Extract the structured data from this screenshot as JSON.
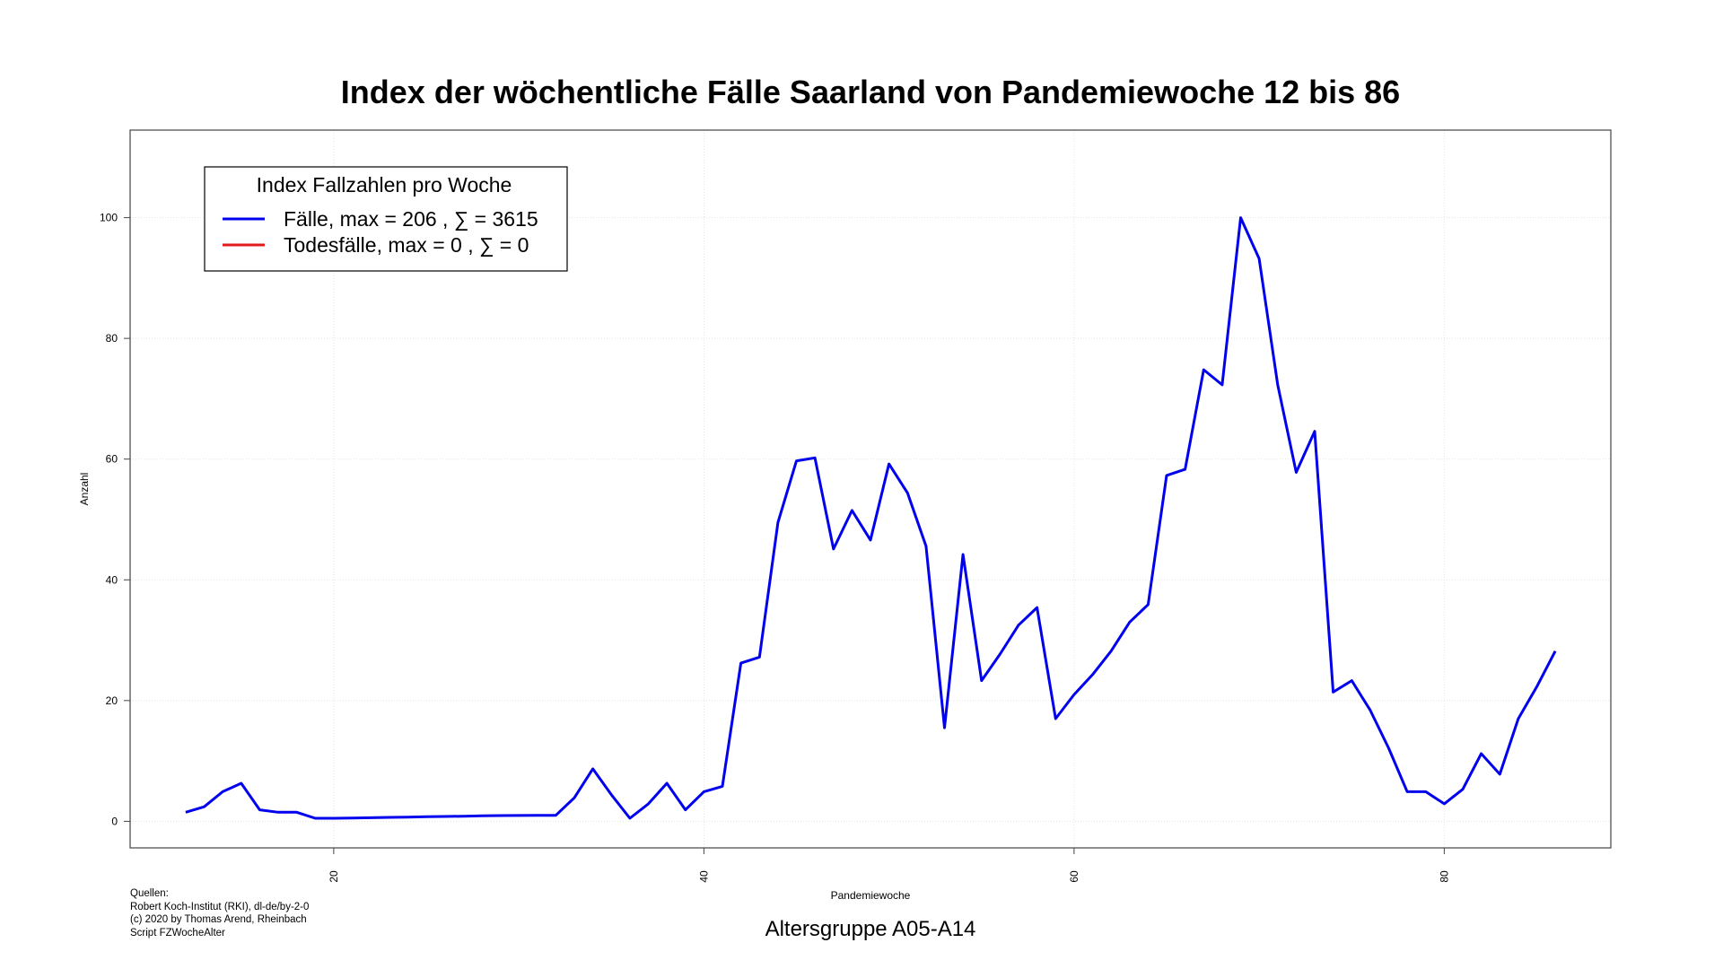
{
  "chart_data": {
    "type": "line",
    "title": "Index der wöchentliche Fälle Saarland von Pandemiewoche 12 bis 86",
    "subtitle": "Altersgruppe A05-A14",
    "xlabel": "Pandemiewoche",
    "ylabel": "Anzahl",
    "xlim": [
      9,
      89
    ],
    "ylim": [
      -4.4,
      114.5
    ],
    "xticks": [
      20,
      40,
      60,
      80
    ],
    "yticks": [
      0,
      20,
      40,
      60,
      80,
      100
    ],
    "grid": true,
    "legend": {
      "title": "Index Fallzahlen pro Woche",
      "placement": "top-left",
      "entries": [
        "Fälle, max = 206 ,  ∑  = 3615",
        "Todesfälle, max = 0 ,  ∑  = 0"
      ]
    },
    "series": [
      {
        "name": "Fälle",
        "color": "#0000ee",
        "x": [
          12,
          13,
          14,
          15,
          16,
          17,
          18,
          19,
          20,
          21,
          22,
          23,
          24,
          25,
          26,
          27,
          28,
          29,
          30,
          31,
          32,
          33,
          34,
          35,
          36,
          37,
          38,
          39,
          40,
          41,
          42,
          43,
          44,
          45,
          46,
          47,
          48,
          49,
          50,
          51,
          52,
          53,
          54,
          55,
          56,
          57,
          58,
          59,
          60,
          61,
          62,
          63,
          64,
          65,
          66,
          67,
          68,
          69,
          70,
          71,
          72,
          73,
          74,
          75,
          76,
          77,
          78,
          79,
          80,
          81,
          82,
          83,
          84,
          85,
          86
        ],
        "y": [
          1.5,
          2.4,
          4.9,
          6.3,
          1.9,
          1.5,
          1.5,
          0.5,
          0.5,
          0.55,
          0.6,
          0.65,
          0.7,
          0.75,
          0.8,
          0.85,
          0.9,
          0.95,
          0.97,
          1.0,
          1.0,
          3.9,
          8.7,
          4.4,
          0.5,
          2.9,
          6.3,
          1.9,
          4.9,
          5.8,
          26.2,
          27.2,
          49.5,
          59.7,
          60.2,
          45.1,
          51.5,
          46.6,
          59.2,
          54.4,
          45.6,
          15.5,
          44.2,
          23.3,
          27.7,
          32.5,
          35.4,
          17.0,
          21.0,
          24.3,
          28.2,
          33.0,
          35.9,
          57.3,
          58.3,
          74.8,
          72.3,
          100.0,
          93.2,
          72.3,
          57.8,
          64.6,
          21.4,
          23.3,
          18.4,
          12.1,
          4.9,
          4.9,
          2.9,
          5.3,
          11.2,
          7.8,
          17.0,
          22.3,
          28.2
        ]
      },
      {
        "name": "Todesfälle",
        "color": "#e31a1c",
        "x": [],
        "y": []
      }
    ]
  },
  "sources": {
    "label": "Quellen:",
    "lines": [
      "Robert Koch-Institut (RKI), dl-de/by-2-0",
      "(c) 2020 by Thomas Arend, Rheinbach",
      "Script FZWocheAlter"
    ]
  }
}
